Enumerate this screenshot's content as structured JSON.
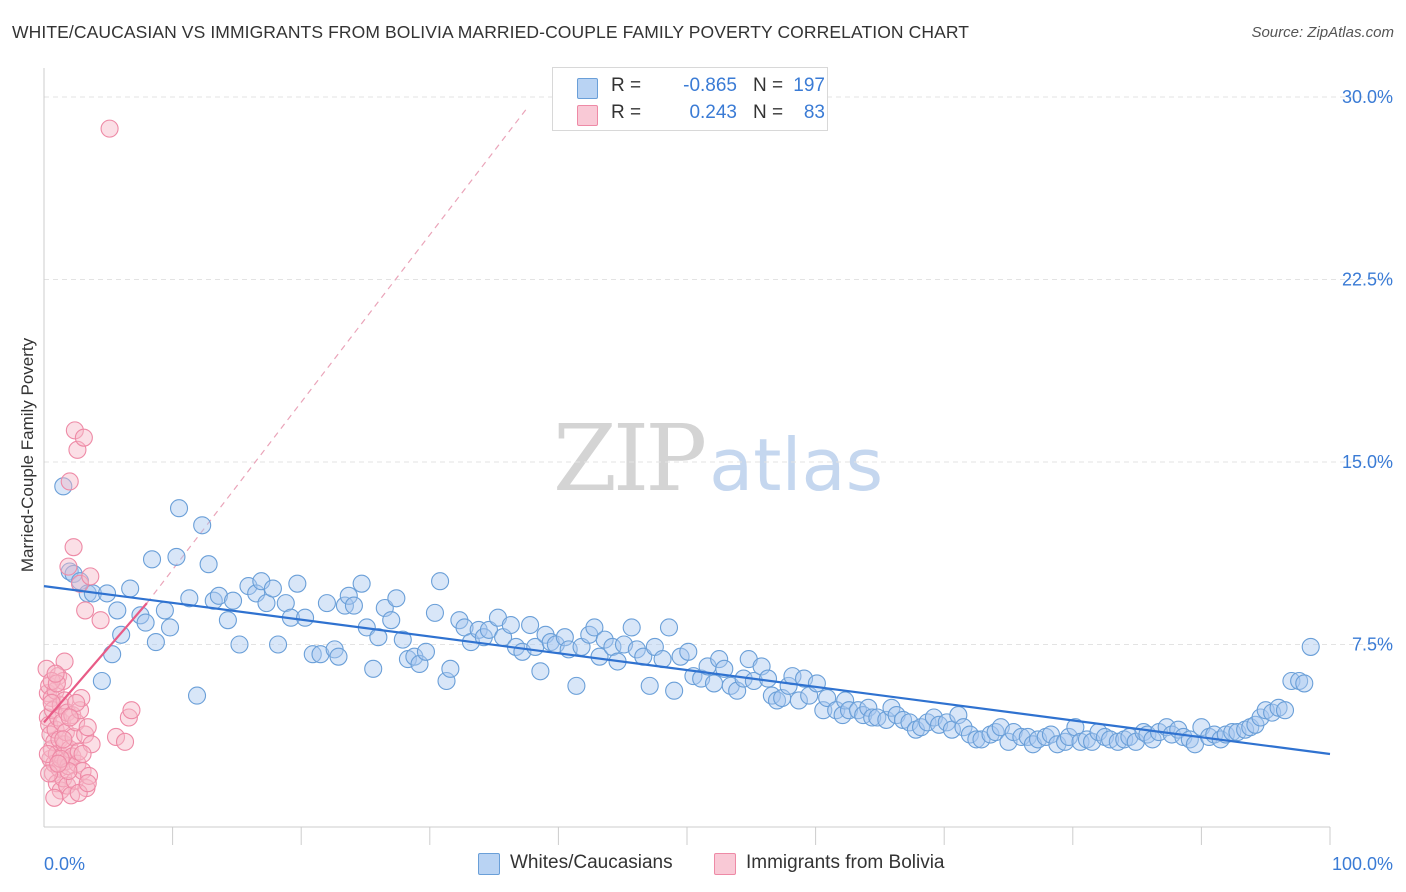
{
  "title": "WHITE/CAUCASIAN VS IMMIGRANTS FROM BOLIVIA MARRIED-COUPLE FAMILY POVERTY CORRELATION CHART",
  "source": "Source: ZipAtlas.com",
  "watermark": {
    "zip": "ZIP",
    "atlas": "atlas"
  },
  "colors": {
    "blue_fill": "#a9c8f0",
    "blue_stroke": "#6a9fd8",
    "blue_line": "#2f72d0",
    "pink_fill": "#f6b8c8",
    "pink_stroke": "#ee8aa6",
    "pink_line": "#e85b86",
    "grid": "#e3e3e3",
    "accent_text": "#3a7bd5"
  },
  "legend": {
    "rows": [
      {
        "r_label": "R =",
        "r_value": "-0.865",
        "n_label": "N =",
        "n_value": "197",
        "series": "Whites/Caucasians"
      },
      {
        "r_label": "R =",
        "r_value": "0.243",
        "n_label": "N =",
        "n_value": "83",
        "series": "Immigrants from Bolivia"
      }
    ]
  },
  "bottom_legend": [
    "Whites/Caucasians",
    "Immigrants from Bolivia"
  ],
  "chart_data": {
    "type": "scatter",
    "title": "WHITE/CAUCASIAN VS IMMIGRANTS FROM BOLIVIA MARRIED-COUPLE FAMILY POVERTY CORRELATION CHART",
    "xlabel": "",
    "ylabel": "Married-Couple Family Poverty",
    "xlim": [
      0,
      100
    ],
    "ylim": [
      0,
      31
    ],
    "x_tick_labels": [
      "0.0%",
      "100.0%"
    ],
    "y_ticks": [
      7.5,
      15.0,
      22.5,
      30.0
    ],
    "y_tick_labels": [
      "7.5%",
      "15.0%",
      "22.5%",
      "30.0%"
    ],
    "grid": true,
    "series": [
      {
        "name": "Whites/Caucasians",
        "R": -0.865,
        "N": 197,
        "trend": {
          "x0": 0,
          "y0": 9.9,
          "x1": 100,
          "y1": 3.0,
          "style": "solid"
        },
        "points": [
          [
            1.5,
            14.0
          ],
          [
            2.0,
            10.5
          ],
          [
            2.3,
            10.4
          ],
          [
            2.8,
            10.1
          ],
          [
            3.4,
            9.6
          ],
          [
            3.8,
            9.6
          ],
          [
            4.5,
            6.0
          ],
          [
            4.9,
            9.6
          ],
          [
            5.3,
            7.1
          ],
          [
            5.7,
            8.9
          ],
          [
            6.0,
            7.9
          ],
          [
            6.7,
            9.8
          ],
          [
            7.5,
            8.7
          ],
          [
            7.9,
            8.4
          ],
          [
            8.4,
            11.0
          ],
          [
            8.7,
            7.6
          ],
          [
            9.4,
            8.9
          ],
          [
            9.8,
            8.2
          ],
          [
            10.3,
            11.1
          ],
          [
            10.5,
            13.1
          ],
          [
            11.3,
            9.4
          ],
          [
            11.9,
            5.4
          ],
          [
            12.3,
            12.4
          ],
          [
            12.8,
            10.8
          ],
          [
            13.2,
            9.3
          ],
          [
            13.6,
            9.5
          ],
          [
            14.3,
            8.5
          ],
          [
            14.7,
            9.3
          ],
          [
            15.2,
            7.5
          ],
          [
            15.9,
            9.9
          ],
          [
            16.5,
            9.6
          ],
          [
            16.9,
            10.1
          ],
          [
            17.3,
            9.2
          ],
          [
            17.8,
            9.8
          ],
          [
            18.2,
            7.5
          ],
          [
            18.8,
            9.2
          ],
          [
            19.2,
            8.6
          ],
          [
            19.7,
            10.0
          ],
          [
            20.3,
            8.6
          ],
          [
            20.9,
            7.1
          ],
          [
            21.5,
            7.1
          ],
          [
            22.0,
            9.2
          ],
          [
            22.6,
            7.3
          ],
          [
            22.9,
            7.0
          ],
          [
            23.4,
            9.1
          ],
          [
            23.7,
            9.5
          ],
          [
            24.1,
            9.1
          ],
          [
            24.7,
            10.0
          ],
          [
            25.1,
            8.2
          ],
          [
            25.6,
            6.5
          ],
          [
            26.0,
            7.8
          ],
          [
            26.5,
            9.0
          ],
          [
            27.0,
            8.5
          ],
          [
            27.4,
            9.4
          ],
          [
            27.9,
            7.7
          ],
          [
            28.3,
            6.9
          ],
          [
            28.8,
            7.0
          ],
          [
            29.2,
            6.7
          ],
          [
            29.7,
            7.2
          ],
          [
            30.4,
            8.8
          ],
          [
            30.8,
            10.1
          ],
          [
            31.3,
            6.0
          ],
          [
            31.6,
            6.5
          ],
          [
            32.3,
            8.5
          ],
          [
            32.7,
            8.2
          ],
          [
            33.2,
            7.6
          ],
          [
            33.8,
            8.1
          ],
          [
            34.2,
            7.8
          ],
          [
            34.6,
            8.1
          ],
          [
            35.3,
            8.6
          ],
          [
            35.7,
            7.8
          ],
          [
            36.3,
            8.3
          ],
          [
            36.7,
            7.4
          ],
          [
            37.2,
            7.2
          ],
          [
            37.8,
            8.3
          ],
          [
            38.2,
            7.4
          ],
          [
            38.6,
            6.4
          ],
          [
            39.0,
            7.9
          ],
          [
            39.4,
            7.6
          ],
          [
            39.8,
            7.5
          ],
          [
            40.5,
            7.8
          ],
          [
            40.8,
            7.3
          ],
          [
            41.4,
            5.8
          ],
          [
            41.8,
            7.4
          ],
          [
            42.4,
            7.9
          ],
          [
            42.8,
            8.2
          ],
          [
            43.2,
            7.0
          ],
          [
            43.6,
            7.7
          ],
          [
            44.2,
            7.4
          ],
          [
            44.6,
            6.8
          ],
          [
            45.1,
            7.5
          ],
          [
            45.7,
            8.2
          ],
          [
            46.1,
            7.3
          ],
          [
            46.6,
            7.0
          ],
          [
            47.1,
            5.8
          ],
          [
            47.5,
            7.4
          ],
          [
            48.1,
            6.9
          ],
          [
            48.6,
            8.2
          ],
          [
            49.0,
            5.6
          ],
          [
            49.5,
            7.0
          ],
          [
            50.1,
            7.2
          ],
          [
            50.5,
            6.2
          ],
          [
            51.1,
            6.1
          ],
          [
            51.6,
            6.6
          ],
          [
            52.1,
            5.9
          ],
          [
            52.5,
            6.9
          ],
          [
            52.9,
            6.5
          ],
          [
            53.4,
            5.8
          ],
          [
            53.9,
            5.6
          ],
          [
            54.4,
            6.1
          ],
          [
            54.8,
            6.9
          ],
          [
            55.2,
            6.0
          ],
          [
            55.8,
            6.6
          ],
          [
            56.3,
            6.1
          ],
          [
            56.6,
            5.4
          ],
          [
            57.0,
            5.2
          ],
          [
            57.4,
            5.3
          ],
          [
            57.9,
            5.8
          ],
          [
            58.2,
            6.2
          ],
          [
            58.7,
            5.2
          ],
          [
            59.1,
            6.1
          ],
          [
            59.5,
            5.4
          ],
          [
            60.1,
            5.9
          ],
          [
            60.6,
            4.8
          ],
          [
            60.9,
            5.3
          ],
          [
            61.6,
            4.8
          ],
          [
            62.1,
            4.6
          ],
          [
            62.3,
            5.2
          ],
          [
            62.6,
            4.8
          ],
          [
            63.3,
            4.8
          ],
          [
            63.7,
            4.6
          ],
          [
            64.1,
            4.9
          ],
          [
            64.4,
            4.5
          ],
          [
            64.8,
            4.5
          ],
          [
            65.5,
            4.4
          ],
          [
            65.9,
            4.9
          ],
          [
            66.3,
            4.6
          ],
          [
            66.8,
            4.4
          ],
          [
            67.3,
            4.3
          ],
          [
            67.8,
            4.0
          ],
          [
            68.2,
            4.1
          ],
          [
            68.7,
            4.3
          ],
          [
            69.2,
            4.5
          ],
          [
            69.6,
            4.2
          ],
          [
            70.2,
            4.3
          ],
          [
            70.6,
            4.0
          ],
          [
            71.1,
            4.6
          ],
          [
            71.5,
            4.1
          ],
          [
            72.0,
            3.8
          ],
          [
            72.5,
            3.6
          ],
          [
            72.9,
            3.6
          ],
          [
            73.6,
            3.8
          ],
          [
            74.0,
            3.9
          ],
          [
            74.4,
            4.1
          ],
          [
            75.0,
            3.5
          ],
          [
            75.4,
            3.9
          ],
          [
            76.0,
            3.7
          ],
          [
            76.5,
            3.7
          ],
          [
            76.9,
            3.4
          ],
          [
            77.3,
            3.6
          ],
          [
            77.9,
            3.7
          ],
          [
            78.3,
            3.8
          ],
          [
            78.8,
            3.4
          ],
          [
            79.4,
            3.5
          ],
          [
            79.7,
            3.7
          ],
          [
            80.2,
            4.1
          ],
          [
            80.6,
            3.5
          ],
          [
            81.1,
            3.6
          ],
          [
            81.5,
            3.5
          ],
          [
            82.0,
            3.9
          ],
          [
            82.5,
            3.7
          ],
          [
            82.9,
            3.6
          ],
          [
            83.5,
            3.5
          ],
          [
            84.0,
            3.6
          ],
          [
            84.4,
            3.7
          ],
          [
            84.9,
            3.5
          ],
          [
            85.5,
            3.9
          ],
          [
            85.8,
            3.8
          ],
          [
            86.2,
            3.6
          ],
          [
            86.7,
            3.9
          ],
          [
            87.3,
            4.1
          ],
          [
            87.7,
            3.8
          ],
          [
            88.2,
            4.0
          ],
          [
            88.6,
            3.7
          ],
          [
            89.1,
            3.6
          ],
          [
            89.5,
            3.4
          ],
          [
            90.0,
            4.1
          ],
          [
            90.6,
            3.7
          ],
          [
            91.0,
            3.8
          ],
          [
            91.5,
            3.6
          ],
          [
            91.9,
            3.8
          ],
          [
            92.4,
            3.9
          ],
          [
            92.8,
            3.9
          ],
          [
            93.4,
            4.0
          ],
          [
            93.8,
            4.1
          ],
          [
            94.2,
            4.2
          ],
          [
            94.6,
            4.5
          ],
          [
            95.0,
            4.8
          ],
          [
            95.5,
            4.7
          ],
          [
            96.0,
            4.9
          ],
          [
            96.5,
            4.8
          ],
          [
            97.0,
            6.0
          ],
          [
            97.6,
            6.0
          ],
          [
            98.0,
            5.9
          ],
          [
            98.5,
            7.4
          ]
        ]
      },
      {
        "name": "Immigrants from Bolivia",
        "R": 0.243,
        "N": 83,
        "trend": {
          "x0": 0,
          "y0": 4.3,
          "x1": 8.0,
          "y1": 9.2,
          "style": "solid",
          "extend_to": {
            "x": 37.5,
            "y": 29.5
          },
          "extend_style": "dashed"
        },
        "points": [
          [
            0.2,
            6.5
          ],
          [
            0.3,
            5.5
          ],
          [
            0.3,
            4.5
          ],
          [
            0.4,
            5.8
          ],
          [
            0.4,
            4.2
          ],
          [
            0.5,
            3.8
          ],
          [
            0.5,
            2.8
          ],
          [
            0.6,
            5.3
          ],
          [
            0.6,
            3.2
          ],
          [
            0.7,
            2.2
          ],
          [
            0.7,
            4.8
          ],
          [
            0.8,
            3.5
          ],
          [
            0.8,
            2.6
          ],
          [
            0.9,
            5.6
          ],
          [
            0.9,
            4.0
          ],
          [
            1.0,
            3.0
          ],
          [
            1.0,
            1.8
          ],
          [
            1.1,
            6.2
          ],
          [
            1.1,
            4.5
          ],
          [
            1.2,
            2.4
          ],
          [
            1.2,
            3.6
          ],
          [
            1.3,
            5.0
          ],
          [
            1.3,
            1.5
          ],
          [
            1.4,
            2.9
          ],
          [
            1.4,
            4.3
          ],
          [
            1.5,
            6.0
          ],
          [
            1.5,
            2.0
          ],
          [
            1.6,
            3.4
          ],
          [
            1.6,
            5.2
          ],
          [
            1.7,
            2.7
          ],
          [
            1.7,
            3.9
          ],
          [
            1.8,
            1.7
          ],
          [
            1.8,
            4.7
          ],
          [
            1.9,
            10.7
          ],
          [
            1.9,
            2.5
          ],
          [
            2.0,
            3.2
          ],
          [
            2.0,
            14.2
          ],
          [
            2.1,
            1.3
          ],
          [
            2.2,
            4.6
          ],
          [
            2.2,
            2.9
          ],
          [
            2.3,
            3.7
          ],
          [
            2.3,
            11.5
          ],
          [
            2.4,
            16.3
          ],
          [
            2.4,
            1.9
          ],
          [
            2.5,
            4.3
          ],
          [
            2.6,
            2.6
          ],
          [
            2.6,
            15.5
          ],
          [
            2.7,
            3.1
          ],
          [
            2.8,
            10.0
          ],
          [
            2.8,
            4.8
          ],
          [
            2.9,
            5.3
          ],
          [
            3.0,
            2.3
          ],
          [
            3.1,
            16.0
          ],
          [
            3.2,
            3.8
          ],
          [
            3.2,
            8.9
          ],
          [
            3.3,
            1.6
          ],
          [
            3.4,
            4.1
          ],
          [
            3.5,
            2.1
          ],
          [
            3.6,
            10.3
          ],
          [
            3.7,
            3.4
          ],
          [
            4.4,
            8.5
          ],
          [
            5.6,
            3.7
          ],
          [
            6.3,
            3.5
          ],
          [
            6.6,
            4.5
          ],
          [
            6.8,
            4.8
          ],
          [
            5.1,
            28.7
          ],
          [
            0.6,
            6.0
          ],
          [
            1.6,
            6.8
          ],
          [
            0.3,
            3.0
          ],
          [
            1.0,
            5.9
          ],
          [
            2.5,
            5.1
          ],
          [
            0.8,
            1.2
          ],
          [
            1.9,
            2.3
          ],
          [
            3.0,
            3.0
          ],
          [
            0.4,
            2.2
          ],
          [
            2.7,
            1.4
          ],
          [
            1.3,
            2.8
          ],
          [
            0.9,
            6.3
          ],
          [
            2.0,
            4.5
          ],
          [
            1.5,
            3.6
          ],
          [
            3.4,
            1.8
          ],
          [
            0.6,
            5.1
          ],
          [
            1.1,
            2.6
          ]
        ]
      }
    ]
  }
}
